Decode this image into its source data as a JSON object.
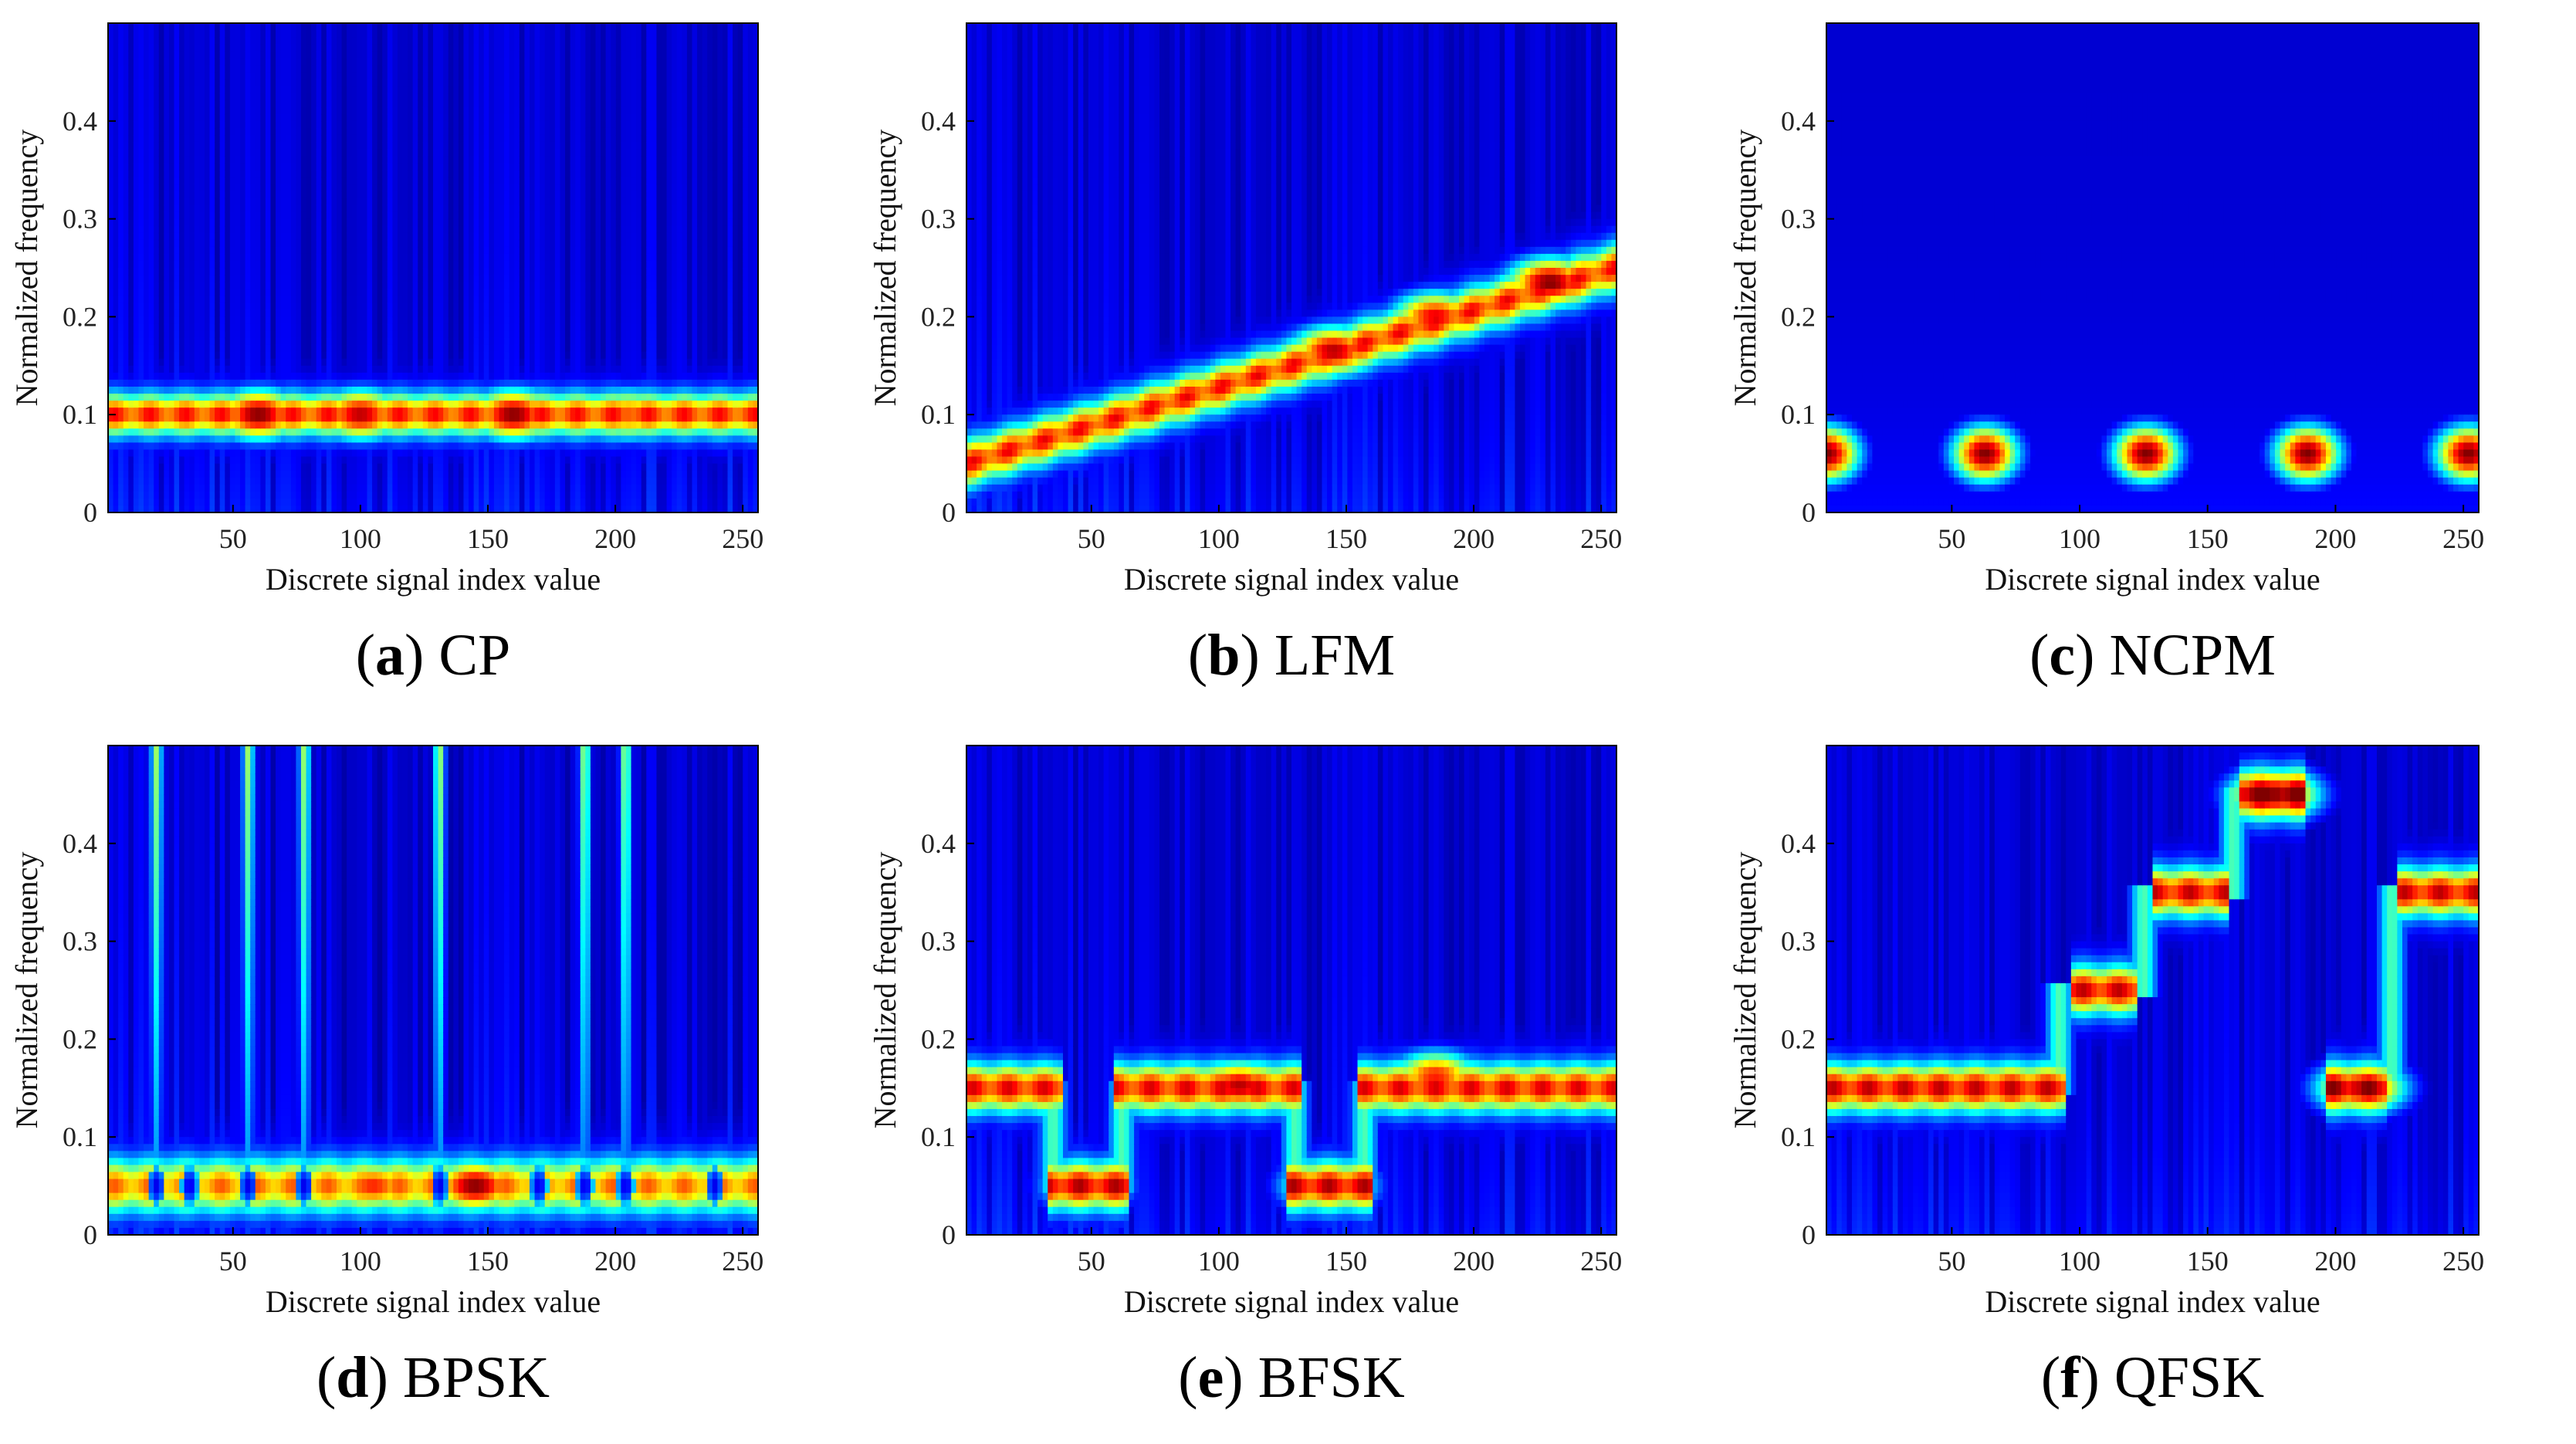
{
  "figure": {
    "colormap": "jet",
    "colors": {
      "background_low": "#00008f",
      "mid": "#00ffff",
      "high": "#ff0000",
      "axis": "#000000"
    }
  },
  "chart_data": [
    {
      "type": "heatmap",
      "id": "a",
      "caption_letter": "a",
      "caption_text": "CP",
      "xlabel": "Discrete signal index value",
      "ylabel": "Normalized frequency",
      "xlim": [
        1,
        256
      ],
      "ylim": [
        0,
        0.5
      ],
      "xticks": [
        50,
        100,
        150,
        200,
        250
      ],
      "yticks": [
        0,
        0.1,
        0.2,
        0.3,
        0.4
      ],
      "ridges": [
        {
          "x": [
            1,
            256
          ],
          "y": [
            0.1,
            0.1
          ],
          "width": 0.014,
          "peak": 0.72
        }
      ],
      "peaks": [
        {
          "x": 60,
          "y": 0.1,
          "v": 1.0
        },
        {
          "x": 100,
          "y": 0.1,
          "v": 0.95
        },
        {
          "x": 160,
          "y": 0.1,
          "v": 1.0
        },
        {
          "x": 205,
          "y": 0.1,
          "v": 0.8
        }
      ],
      "striations": 0.12
    },
    {
      "type": "heatmap",
      "id": "b",
      "caption_letter": "b",
      "caption_text": "LFM",
      "xlabel": "Discrete signal index value",
      "ylabel": "Normalized frequency",
      "xlim": [
        1,
        256
      ],
      "ylim": [
        0,
        0.5
      ],
      "xticks": [
        50,
        100,
        150,
        200,
        250
      ],
      "yticks": [
        0,
        0.1,
        0.2,
        0.3,
        0.4
      ],
      "ridges": [
        {
          "x": [
            1,
            256
          ],
          "y": [
            0.05,
            0.25
          ],
          "width": 0.016,
          "peak": 0.72
        }
      ],
      "peaks": [
        {
          "x": 145,
          "y": 0.165,
          "v": 0.95
        },
        {
          "x": 185,
          "y": 0.2,
          "v": 0.9
        },
        {
          "x": 230,
          "y": 0.235,
          "v": 1.0
        }
      ],
      "striations": 0.12
    },
    {
      "type": "heatmap",
      "id": "c",
      "caption_letter": "c",
      "caption_text": "NCPM",
      "xlabel": "Discrete signal index value",
      "ylabel": "Normalized frequency",
      "xlim": [
        1,
        256
      ],
      "ylim": [
        0,
        0.5
      ],
      "xticks": [
        50,
        100,
        150,
        200,
        250
      ],
      "yticks": [
        0,
        0.1,
        0.2,
        0.3,
        0.4
      ],
      "ridges": [],
      "peaks": [
        {
          "x": 1,
          "y": 0.06,
          "v": 1.0,
          "r": 0.02
        },
        {
          "x": 63,
          "y": 0.06,
          "v": 1.0,
          "r": 0.02
        },
        {
          "x": 126,
          "y": 0.06,
          "v": 1.0,
          "r": 0.02
        },
        {
          "x": 189,
          "y": 0.06,
          "v": 1.0,
          "r": 0.02
        },
        {
          "x": 252,
          "y": 0.06,
          "v": 1.0,
          "r": 0.02
        }
      ],
      "striations": 0.0
    },
    {
      "type": "heatmap",
      "id": "d",
      "caption_letter": "d",
      "caption_text": "BPSK",
      "xlabel": "Discrete signal index value",
      "ylabel": "Normalized frequency",
      "xlim": [
        1,
        256
      ],
      "ylim": [
        0,
        0.5
      ],
      "xticks": [
        50,
        100,
        150,
        200,
        250
      ],
      "yticks": [
        0,
        0.1,
        0.2,
        0.3,
        0.4
      ],
      "ridges": [
        {
          "x": [
            1,
            256
          ],
          "y": [
            0.05,
            0.05
          ],
          "width": 0.018,
          "peak": 0.62
        }
      ],
      "peaks": [
        {
          "x": 145,
          "y": 0.05,
          "v": 1.0
        },
        {
          "x": 105,
          "y": 0.05,
          "v": 0.85
        }
      ],
      "holes": [
        20,
        33,
        56,
        78,
        131,
        170,
        188,
        204,
        239
      ],
      "spikes": [
        20,
        56,
        78,
        131,
        188,
        204
      ],
      "striations": 0.14
    },
    {
      "type": "heatmap",
      "id": "e",
      "caption_letter": "e",
      "caption_text": "BFSK",
      "xlabel": "Discrete signal index value",
      "ylabel": "Normalized frequency",
      "xlim": [
        1,
        256
      ],
      "ylim": [
        0,
        0.5
      ],
      "xticks": [
        50,
        100,
        150,
        200,
        250
      ],
      "yticks": [
        0,
        0.1,
        0.2,
        0.3,
        0.4
      ],
      "ridges": [
        {
          "x": [
            1,
            35
          ],
          "y": [
            0.15,
            0.15
          ],
          "width": 0.016,
          "peak": 0.75
        },
        {
          "x": 35,
          "y": [
            0.15,
            0.05
          ],
          "transition": true
        },
        {
          "x": [
            35,
            62
          ],
          "y": [
            0.05,
            0.05
          ],
          "width": 0.016,
          "peak": 0.8
        },
        {
          "x": 62,
          "y": [
            0.05,
            0.15
          ],
          "transition": true
        },
        {
          "x": [
            62,
            130
          ],
          "y": [
            0.15,
            0.15
          ],
          "width": 0.016,
          "peak": 0.75
        },
        {
          "x": 130,
          "y": [
            0.15,
            0.05
          ],
          "transition": true
        },
        {
          "x": [
            130,
            157
          ],
          "y": [
            0.05,
            0.05
          ],
          "width": 0.016,
          "peak": 0.8
        },
        {
          "x": 157,
          "y": [
            0.05,
            0.15
          ],
          "transition": true
        },
        {
          "x": [
            157,
            256
          ],
          "y": [
            0.15,
            0.15
          ],
          "width": 0.016,
          "peak": 0.75
        }
      ],
      "peaks": [
        {
          "x": 108,
          "y": 0.152,
          "v": 0.95
        },
        {
          "x": 143,
          "y": 0.05,
          "v": 0.9
        },
        {
          "x": 185,
          "y": 0.162,
          "v": 0.85
        },
        {
          "x": 48,
          "y": 0.05,
          "v": 0.7
        }
      ],
      "striations": 0.12
    },
    {
      "type": "heatmap",
      "id": "f",
      "caption_letter": "f",
      "caption_text": "QFSK",
      "xlabel": "Discrete signal index value",
      "ylabel": "Normalized frequency",
      "xlim": [
        1,
        256
      ],
      "ylim": [
        0,
        0.5
      ],
      "xticks": [
        50,
        100,
        150,
        200,
        250
      ],
      "yticks": [
        0,
        0.1,
        0.2,
        0.3,
        0.4
      ],
      "ridges": [
        {
          "x": [
            1,
            92
          ],
          "y": [
            0.15,
            0.15
          ],
          "width": 0.016,
          "peak": 0.78
        },
        {
          "x": 92,
          "y": [
            0.15,
            0.25
          ],
          "transition": true
        },
        {
          "x": [
            100,
            120
          ],
          "y": [
            0.25,
            0.25
          ],
          "width": 0.016,
          "peak": 0.78
        },
        {
          "x": 125,
          "y": [
            0.25,
            0.35
          ],
          "transition": true
        },
        {
          "x": [
            132,
            155
          ],
          "y": [
            0.35,
            0.35
          ],
          "width": 0.016,
          "peak": 0.78
        },
        {
          "x": 160,
          "y": [
            0.35,
            0.45
          ],
          "transition": true
        },
        {
          "x": [
            165,
            185
          ],
          "y": [
            0.45,
            0.45
          ],
          "width": 0.016,
          "peak": 0.9
        },
        {
          "x": [
            200,
            218
          ],
          "y": [
            0.15,
            0.15
          ],
          "width": 0.016,
          "peak": 0.85
        },
        {
          "x": 222,
          "y": [
            0.15,
            0.35
          ],
          "transition": true
        },
        {
          "x": [
            228,
            256
          ],
          "y": [
            0.35,
            0.35
          ],
          "width": 0.016,
          "peak": 0.78
        }
      ],
      "peaks": [
        {
          "x": 176,
          "y": 0.45,
          "v": 1.0
        },
        {
          "x": 210,
          "y": 0.15,
          "v": 0.95
        }
      ],
      "striations": 0.1
    }
  ]
}
